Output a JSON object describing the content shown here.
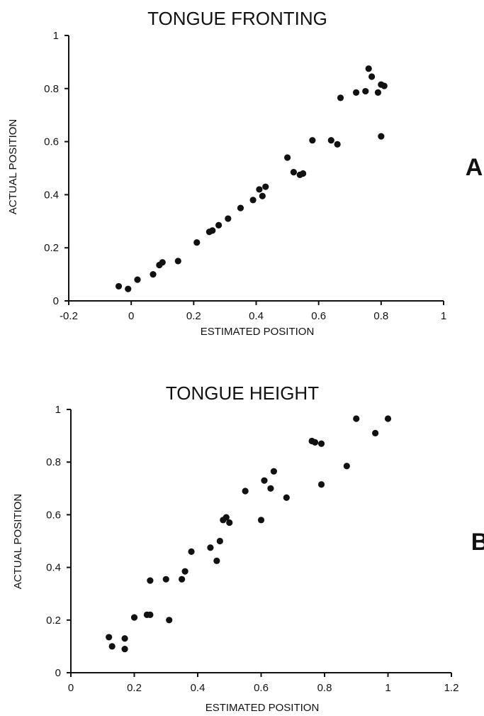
{
  "chart_data": [
    {
      "type": "scatter",
      "title": "TONGUE FRONTING",
      "panel_label": "A",
      "xlabel": "ESTIMATED POSITION",
      "ylabel": "ACTUAL POSITION",
      "xlim": [
        -0.2,
        1
      ],
      "ylim": [
        0,
        1
      ],
      "xticks": [
        "-0.2",
        "0",
        "0.2",
        "0.4",
        "0.6",
        "0.8",
        "1"
      ],
      "yticks": [
        "0",
        "0.2",
        "0.4",
        "0.6",
        "0.8",
        "1"
      ],
      "grid": false,
      "x": [
        -0.04,
        -0.01,
        0.02,
        0.07,
        0.09,
        0.1,
        0.15,
        0.21,
        0.25,
        0.26,
        0.28,
        0.31,
        0.35,
        0.39,
        0.41,
        0.42,
        0.43,
        0.5,
        0.52,
        0.54,
        0.55,
        0.58,
        0.64,
        0.66,
        0.67,
        0.72,
        0.75,
        0.76,
        0.77,
        0.79,
        0.8,
        0.8,
        0.81
      ],
      "y": [
        0.055,
        0.045,
        0.08,
        0.1,
        0.135,
        0.145,
        0.15,
        0.22,
        0.26,
        0.265,
        0.285,
        0.31,
        0.35,
        0.38,
        0.42,
        0.395,
        0.43,
        0.54,
        0.485,
        0.475,
        0.48,
        0.605,
        0.605,
        0.59,
        0.765,
        0.785,
        0.79,
        0.875,
        0.845,
        0.785,
        0.815,
        0.62,
        0.81
      ]
    },
    {
      "type": "scatter",
      "title": "TONGUE HEIGHT",
      "panel_label": "B",
      "xlabel": "ESTIMATED POSITION",
      "ylabel": "ACTUAL POSITION",
      "xlim": [
        0,
        1.2
      ],
      "ylim": [
        0,
        1
      ],
      "xticks": [
        "0",
        "0.2",
        "0.4",
        "0.6",
        "0.8",
        "1",
        "1.2"
      ],
      "yticks": [
        "0",
        "0.2",
        "0.4",
        "0.6",
        "0.8",
        "1"
      ],
      "grid": false,
      "x": [
        0.12,
        0.13,
        0.17,
        0.17,
        0.2,
        0.24,
        0.25,
        0.25,
        0.3,
        0.31,
        0.35,
        0.36,
        0.38,
        0.44,
        0.46,
        0.47,
        0.48,
        0.49,
        0.5,
        0.55,
        0.6,
        0.61,
        0.63,
        0.64,
        0.68,
        0.76,
        0.77,
        0.79,
        0.79,
        0.87,
        0.9,
        0.96,
        1.0
      ],
      "y": [
        0.135,
        0.1,
        0.13,
        0.09,
        0.21,
        0.22,
        0.22,
        0.35,
        0.355,
        0.2,
        0.355,
        0.385,
        0.46,
        0.475,
        0.425,
        0.5,
        0.58,
        0.59,
        0.57,
        0.69,
        0.58,
        0.73,
        0.7,
        0.765,
        0.665,
        0.88,
        0.875,
        0.87,
        0.715,
        0.785,
        0.965,
        0.91,
        0.965
      ]
    }
  ]
}
